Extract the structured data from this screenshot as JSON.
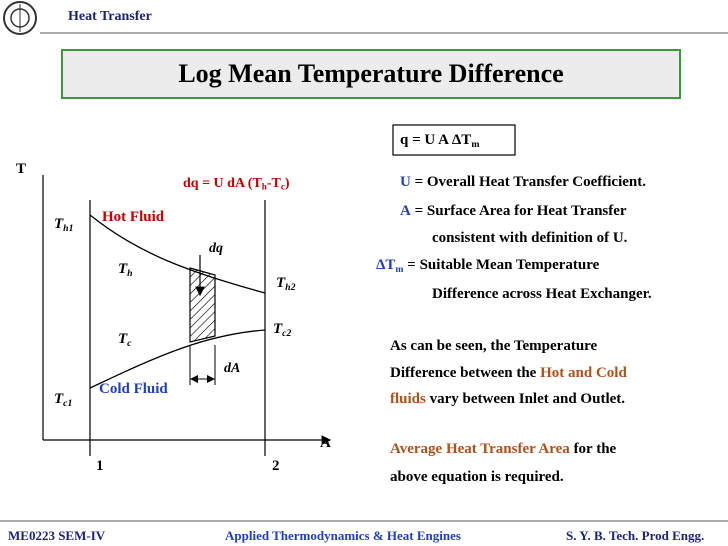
{
  "header": {
    "course": "Heat Transfer",
    "title": "Log Mean Temperature Difference"
  },
  "equation": [
    "q = U A ΔT",
    "m"
  ],
  "diagram": {
    "y_axis": "T",
    "x_axis": "A",
    "differential": [
      "dq = U dA (T",
      "h",
      "-T",
      "c",
      ")"
    ],
    "hot_fluid": "Hot Fluid",
    "cold_fluid": "Cold Fluid",
    "th1": [
      "T",
      "h1"
    ],
    "th": [
      "T",
      "h"
    ],
    "th2": [
      "T",
      "h2"
    ],
    "tc1": [
      "T",
      "c1"
    ],
    "tc": [
      "T",
      "c"
    ],
    "tc2": [
      "T",
      "c2"
    ],
    "dq": "dq",
    "da": "dA",
    "station1": "1",
    "station2": "2"
  },
  "definitions": [
    {
      "symbol": [
        "U",
        ""
      ],
      "text": "= Overall Heat Transfer Coefficient."
    },
    {
      "symbol": [
        "A",
        ""
      ],
      "text": "= Surface Area for Heat Transfer",
      "continued": "consistent with definition of U."
    },
    {
      "symbol": [
        "ΔT",
        "m"
      ],
      "text": "= Suitable Mean Temperature",
      "continued": "Difference across Heat Exchanger."
    }
  ],
  "note": [
    [
      "As can be seen, the Temperature"
    ],
    [
      "Difference between the ",
      "Hot and Cold"
    ],
    [
      "fluids",
      " vary between Inlet and Outlet."
    ]
  ],
  "requirement": [
    [
      "Average Heat Transfer Area",
      " for the"
    ],
    [
      "above equation is required."
    ]
  ],
  "footer": {
    "left": "ME0223 SEM-IV",
    "center": "Applied Thermodynamics & Heat Engines",
    "right": "S. Y. B. Tech. Prod Engg."
  }
}
